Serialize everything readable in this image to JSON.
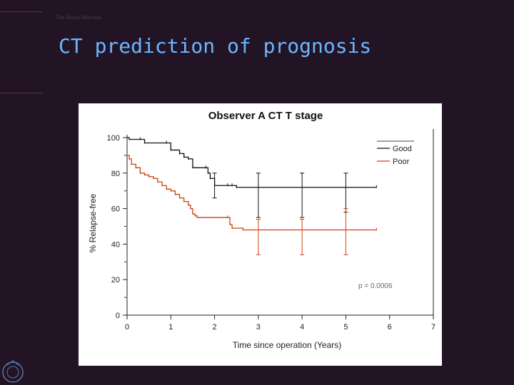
{
  "header": {
    "brand": "The Royal Marsden",
    "title": "CT prediction of prognosis"
  },
  "chart_data": {
    "type": "line",
    "title": "Observer A CT T stage",
    "xlabel": "Time since operation (Years)",
    "ylabel": "% Relapse-free",
    "xlim": [
      0,
      7
    ],
    "ylim": [
      0,
      100
    ],
    "xticks": [
      "0",
      "1",
      "2",
      "3",
      "4",
      "5",
      "6",
      "7"
    ],
    "yticks": [
      "0",
      "20",
      "40",
      "60",
      "80",
      "100"
    ],
    "grid": false,
    "legend_position": "top-right",
    "annotation": "p = 0.0006",
    "series": [
      {
        "name": "Good",
        "color": "#111111",
        "x": [
          0,
          0.05,
          0.3,
          0.4,
          0.9,
          1.0,
          1.2,
          1.3,
          1.4,
          1.5,
          1.8,
          1.85,
          1.9,
          2.0,
          2.3,
          2.4,
          2.5,
          5.7
        ],
        "y": [
          100,
          99,
          99,
          97,
          97,
          93,
          91,
          89,
          88,
          83,
          83,
          80,
          77,
          73,
          73,
          73,
          72,
          72
        ],
        "ci_x": [
          2.0,
          3.0,
          4.0,
          5.0
        ],
        "ci_upper": [
          80,
          80,
          80,
          80
        ],
        "ci_lower": [
          66,
          55,
          55,
          58
        ]
      },
      {
        "name": "Poor",
        "color": "#cc4411",
        "x": [
          0,
          0.05,
          0.1,
          0.2,
          0.3,
          0.4,
          0.5,
          0.6,
          0.7,
          0.8,
          0.9,
          1.0,
          1.1,
          1.2,
          1.3,
          1.4,
          1.45,
          1.5,
          1.55,
          1.6,
          2.3,
          2.35,
          2.4,
          2.65,
          5.7
        ],
        "y": [
          90,
          88,
          85,
          83,
          80,
          79,
          78,
          77,
          75,
          73,
          71,
          70,
          68,
          66,
          64,
          62,
          60,
          57,
          56,
          55,
          55,
          51,
          49,
          48,
          48
        ],
        "ci_x": [
          3.0,
          4.0,
          5.0
        ],
        "ci_upper": [
          54,
          54,
          60
        ],
        "ci_lower": [
          34,
          34,
          34
        ]
      }
    ]
  }
}
